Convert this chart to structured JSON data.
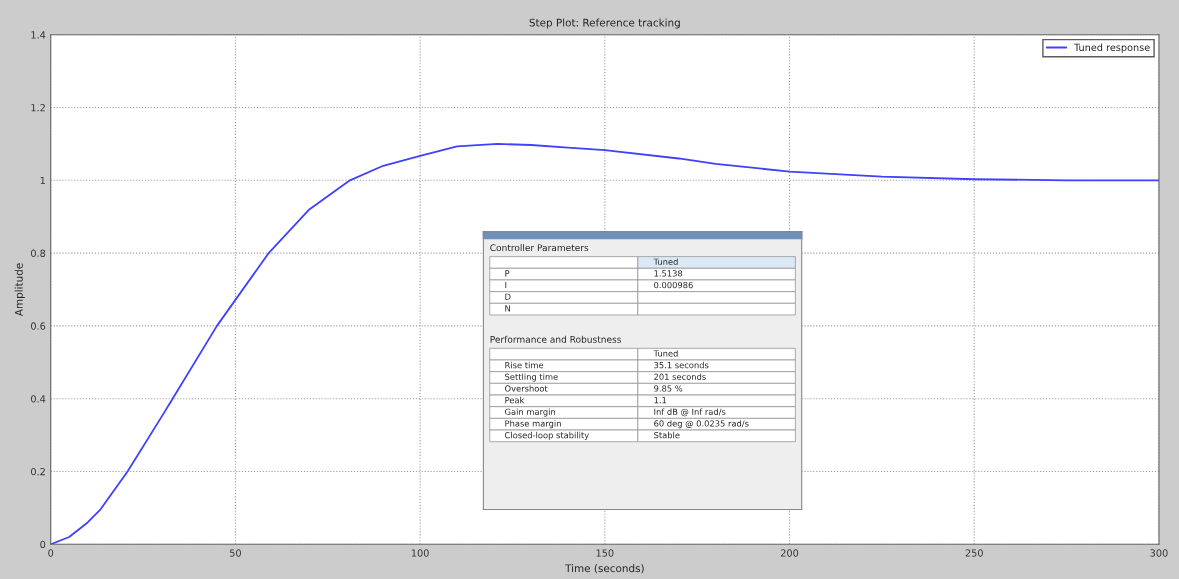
{
  "chart_data": {
    "type": "line",
    "title": "Step Plot: Reference tracking",
    "xlabel": "Time (seconds)",
    "ylabel": "Amplitude",
    "x": [
      0,
      5,
      10,
      13.5,
      20.8,
      30,
      33,
      45,
      59,
      70,
      81,
      90,
      100,
      110,
      121,
      130,
      140,
      150,
      170,
      180,
      200,
      225,
      250,
      275,
      300
    ],
    "series": [
      {
        "name": "Tuned response",
        "color": "#4040ff",
        "values": [
          0,
          0.02,
          0.06,
          0.096,
          0.2,
          0.35,
          0.4,
          0.6,
          0.8,
          0.92,
          1.0,
          1.04,
          1.067,
          1.093,
          1.1,
          1.097,
          1.09,
          1.083,
          1.06,
          1.045,
          1.024,
          1.01,
          1.003,
          1.0,
          1.0
        ]
      }
    ],
    "xlim": [
      0,
      300
    ],
    "xticks": [
      0,
      50,
      100,
      150,
      200,
      250,
      300
    ],
    "ylim": [
      0,
      1.4
    ],
    "yticks": [
      0,
      0.2,
      0.4,
      0.6,
      0.8,
      1,
      1.2,
      1.4
    ],
    "grid": true,
    "legend": "top right",
    "line_style": "solid",
    "marker": "none",
    "annotations": [
      "Controller Parameters",
      "Tuned",
      "P",
      "1.5138",
      "I",
      "0.000986",
      "D",
      "N",
      "Performance and Robustness",
      "Tuned",
      "Rise time",
      "35.1 seconds",
      "Settling time",
      "201 seconds",
      "Overshoot",
      "9.85 %",
      "Peak",
      "1.1",
      "Gain margin",
      "Inf dB @ Inf rad/s",
      "Phase margin",
      "60 deg @ 0.0235 rad/s",
      "Closed-loop stability",
      "Stable"
    ]
  }
}
